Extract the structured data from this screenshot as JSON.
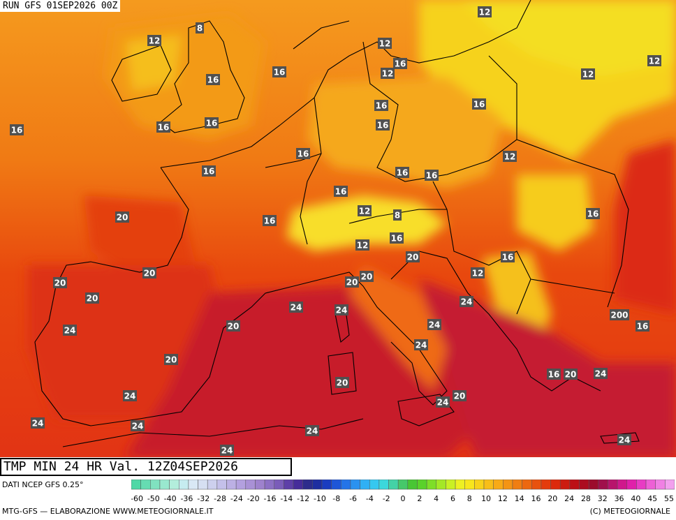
{
  "header": {
    "run_label": "RUN GFS 01SEP2026 00Z"
  },
  "footer": {
    "valid_label": "TMP MIN 24 HR Val. 12Z04SEP2026",
    "source_label": "DATI NCEP GFS 0.25°",
    "credit_label": "MTG-GFS — ELABORAZIONE WWW.METEOGIORNALE.IT",
    "copyright_label": "(C) METEOGIORNALE"
  },
  "colorscale": {
    "colors": [
      "#4fd8a6",
      "#66dcb2",
      "#80e2c0",
      "#99e8cf",
      "#b3eedc",
      "#c6ecf0",
      "#d9e8f5",
      "#d6dff2",
      "#cdd0ee",
      "#c4c0ea",
      "#bcb0e4",
      "#b3a0df",
      "#a991d6",
      "#9e82cd",
      "#8c70c4",
      "#7a5cb9",
      "#5e3fa8",
      "#462c9a",
      "#2d2c8c",
      "#1e2ea0",
      "#1a3cc0",
      "#1e56d8",
      "#2474e8",
      "#2a92f0",
      "#30b0f4",
      "#36c8f0",
      "#3cd8dc",
      "#44d2a6",
      "#46c86a",
      "#48c634",
      "#5ad22a",
      "#7ede28",
      "#a4e826",
      "#caf024",
      "#eef022",
      "#f8e61c",
      "#f8d21a",
      "#f8be18",
      "#f8aa16",
      "#f49414",
      "#f07e12",
      "#ec6810",
      "#e8520e",
      "#e43c0c",
      "#dc2a0c",
      "#cc1c10",
      "#bc1016",
      "#ac0c20",
      "#9c0c2c",
      "#a0104c",
      "#b8146c",
      "#d0188c",
      "#e020aa",
      "#e83cc4",
      "#ee60d6",
      "#f080e4",
      "#f2a0ee"
    ],
    "tick_labels": [
      "-60",
      "-50",
      "-40",
      "-36",
      "-32",
      "-28",
      "-24",
      "-20",
      "-16",
      "-14",
      "-12",
      "-10",
      "-8",
      "-6",
      "-4",
      "-2",
      "0",
      "2",
      "4",
      "6",
      "8",
      "10",
      "12",
      "14",
      "16",
      "20",
      "24",
      "28",
      "32",
      "36",
      "40",
      "45",
      "55"
    ]
  },
  "map_labels": [
    {
      "value": "12"
    },
    {
      "value": "8"
    },
    {
      "value": "12"
    },
    {
      "value": "12"
    },
    {
      "value": "12"
    },
    {
      "value": "16"
    },
    {
      "value": "16"
    },
    {
      "value": "12"
    },
    {
      "value": "12"
    },
    {
      "value": "16"
    },
    {
      "value": "16"
    },
    {
      "value": "16"
    },
    {
      "value": "16"
    },
    {
      "value": "16"
    },
    {
      "value": "16"
    },
    {
      "value": "16"
    },
    {
      "value": "12"
    },
    {
      "value": "16"
    },
    {
      "value": "16"
    },
    {
      "value": "16"
    },
    {
      "value": "16"
    },
    {
      "value": "12"
    },
    {
      "value": "8"
    },
    {
      "value": "20"
    },
    {
      "value": "16"
    },
    {
      "value": "16"
    },
    {
      "value": "12"
    },
    {
      "value": "16"
    },
    {
      "value": "16"
    },
    {
      "value": "20"
    },
    {
      "value": "20"
    },
    {
      "value": "20"
    },
    {
      "value": "12"
    },
    {
      "value": "20"
    },
    {
      "value": "16"
    },
    {
      "value": "20"
    },
    {
      "value": "24"
    },
    {
      "value": "24"
    },
    {
      "value": "24"
    },
    {
      "value": "20"
    },
    {
      "value": "200"
    },
    {
      "value": "16"
    },
    {
      "value": "24"
    },
    {
      "value": "24"
    },
    {
      "value": "20"
    },
    {
      "value": "24"
    },
    {
      "value": "20"
    },
    {
      "value": "16"
    },
    {
      "value": "20"
    },
    {
      "value": "24"
    },
    {
      "value": "24"
    },
    {
      "value": "24"
    },
    {
      "value": "20"
    },
    {
      "value": "24"
    },
    {
      "value": "24"
    },
    {
      "value": "24"
    },
    {
      "value": "24"
    },
    {
      "value": "24"
    },
    {
      "value": "20"
    }
  ]
}
